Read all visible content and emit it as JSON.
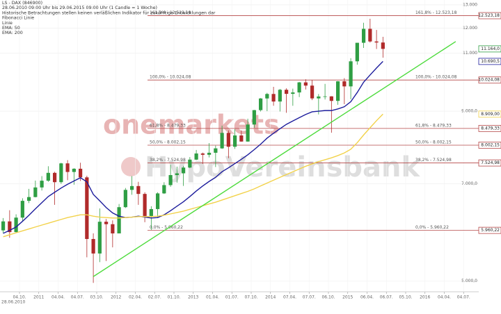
{
  "chart_data": {
    "type": "candlestick",
    "title": "LS - DAX (846900)",
    "subtitle": "28.06.2010 09:00 Uhr bis 29.06.2015 09:00 Uhr (1 Candle = 1 Woche)",
    "disclaimer": "Historische Betrachtungen stellen keinen verläßlichen Indikator für zukünftige Entwicklungen dar",
    "watermark": [
      "onemarkets",
      "HypoVereinsbank"
    ],
    "log_scale": true,
    "grid": true,
    "ylim": [
      4820,
      13220
    ],
    "yticks": [
      {
        "value": 5000,
        "label": "5.000,0"
      },
      {
        "value": 7000,
        "label": "7.000,0"
      },
      {
        "value": 9000,
        "label": "9.000,0"
      },
      {
        "value": 11000,
        "label": "11.000"
      },
      {
        "value": 12000,
        "label": "12.000"
      },
      {
        "value": 13000,
        "label": "13.000"
      }
    ],
    "x_start_label": "28.06.2010",
    "xticks": [
      "04.10.",
      "2011",
      "04.04.",
      "04.07.",
      "03.10.",
      "2012",
      "02.04.",
      "02.07.",
      "01.10.",
      "2013",
      "01.04.",
      "01.07.",
      "07.10.",
      "2014",
      "07.04.",
      "07.07.",
      "06.10.",
      "2015",
      "06.04.",
      "06.07.",
      "05.10.",
      "2016",
      "04.04.",
      "04.07."
    ],
    "up_color": "#2f9e44",
    "down_color": "#b02a2a",
    "open": [
      5960,
      6148,
      5925,
      6229,
      6601,
      6688,
      6914,
      7077,
      7272,
      7041,
      7514,
      7294,
      7376,
      7159,
      5785,
      5502,
      6141,
      6089,
      5898,
      6458,
      6856,
      6947,
      6761,
      6264,
      6416,
      6773,
      6970,
      7216,
      7260,
      7406,
      7612,
      7776,
      7741,
      7795,
      7914,
      8349,
      7959,
      8276,
      8103,
      8594,
      9033,
      9405,
      9552,
      9306,
      9692,
      9556,
      9603,
      9943,
      9833,
      9407,
      9470,
      9474,
      9326,
      9980,
      9806,
      10694,
      11402,
      11966,
      11454,
      11413
    ],
    "high": [
      6220,
      6390,
      6300,
      6660,
      6880,
      7080,
      7190,
      7440,
      7300,
      7530,
      7600,
      7390,
      7530,
      7200,
      5900,
      6430,
      6200,
      6170,
      6530,
      6900,
      7190,
      7050,
      6800,
      6480,
      6800,
      7040,
      7480,
      7430,
      7450,
      7680,
      7870,
      7800,
      8060,
      7990,
      8560,
      8420,
      8460,
      8420,
      8770,
      9040,
      9420,
      9590,
      9790,
      9720,
      9740,
      9730,
      9960,
      10050,
      10030,
      9550,
      9890,
      9480,
      9990,
      10090,
      10810,
      11400,
      12220,
      12390,
      11920,
      11640
    ],
    "low": [
      5900,
      5810,
      5920,
      6150,
      6550,
      6680,
      6840,
      7050,
      6510,
      7000,
      7090,
      6980,
      7070,
      5430,
      4970,
      5340,
      5360,
      5620,
      5900,
      6440,
      6740,
      6510,
      6130,
      5970,
      6240,
      6760,
      6930,
      7030,
      6950,
      7390,
      7600,
      7500,
      7670,
      7420,
      7900,
      7650,
      7900,
      8100,
      8100,
      8500,
      8990,
      9000,
      9170,
      8990,
      8950,
      9170,
      9450,
      9700,
      9350,
      8900,
      9370,
      8355,
      9200,
      9220,
      9380,
      10570,
      11200,
      11410,
      11160,
      10830
    ],
    "close": [
      6148,
      5925,
      6229,
      6601,
      6688,
      6914,
      7077,
      7272,
      7041,
      7514,
      7294,
      7376,
      7159,
      5785,
      5502,
      6141,
      6089,
      5898,
      6458,
      6856,
      6947,
      6761,
      6264,
      6416,
      6773,
      6970,
      7216,
      7260,
      7406,
      7612,
      7776,
      7741,
      7795,
      7914,
      8349,
      7959,
      8276,
      8103,
      8594,
      9033,
      9405,
      9552,
      9306,
      9692,
      9556,
      9603,
      9943,
      9833,
      9407,
      9470,
      9474,
      9326,
      9980,
      9806,
      10694,
      11402,
      11966,
      11454,
      11413,
      11164
    ],
    "series": [
      {
        "name": "EMA: 50",
        "color": "#1c1c9c",
        "values": [
          5900,
          5960,
          6030,
          6150,
          6280,
          6420,
          6560,
          6700,
          6800,
          6900,
          6990,
          7070,
          7150,
          7050,
          6750,
          6600,
          6450,
          6330,
          6260,
          6230,
          6240,
          6260,
          6240,
          6220,
          6230,
          6290,
          6380,
          6480,
          6580,
          6700,
          6830,
          6950,
          7060,
          7160,
          7300,
          7400,
          7510,
          7620,
          7740,
          7880,
          8030,
          8200,
          8340,
          8470,
          8600,
          8700,
          8800,
          8900,
          8980,
          9000,
          9020,
          9020,
          9070,
          9140,
          9300,
          9600,
          9950,
          10200,
          10450,
          10690
        ]
      },
      {
        "name": "EMA: 200",
        "color": "#f2d24a",
        "values": [
          5830,
          5870,
          5910,
          5950,
          5990,
          6030,
          6070,
          6110,
          6150,
          6190,
          6230,
          6260,
          6290,
          6290,
          6260,
          6240,
          6230,
          6220,
          6220,
          6230,
          6240,
          6250,
          6250,
          6250,
          6260,
          6280,
          6310,
          6340,
          6370,
          6410,
          6450,
          6490,
          6530,
          6570,
          6620,
          6670,
          6720,
          6770,
          6820,
          6880,
          6950,
          7020,
          7090,
          7160,
          7230,
          7300,
          7370,
          7440,
          7500,
          7560,
          7610,
          7660,
          7720,
          7790,
          7890,
          8070,
          8290,
          8500,
          8710,
          8909
        ]
      }
    ],
    "trend_line": {
      "name": "Linie",
      "color": "#4ddb3c",
      "values": [
        5080,
        11450
      ]
    },
    "fibonacci": {
      "name": "Fibonacci Linie",
      "color": "#b54646",
      "levels": [
        {
          "value": 12523.18,
          "label": "161,8% - 12.523,18"
        },
        {
          "value": 10024.08,
          "label": "100,0% - 10.024,08"
        },
        {
          "value": 8479.33,
          "label": "61,8% - 8.479,33"
        },
        {
          "value": 8002.15,
          "label": "50,0% - 8.002,15"
        },
        {
          "value": 7524.98,
          "label": "38,2% - 7.524,98"
        },
        {
          "value": 5960.22,
          "label": "0,0% - 5.960,22"
        }
      ]
    },
    "price_markers": [
      {
        "value": 12523.18,
        "label": "12.523,18",
        "color": "#b54646"
      },
      {
        "value": 11164,
        "label": "11.164,0",
        "color": "#2f9e44"
      },
      {
        "value": 10690.5,
        "label": "10.690,5",
        "color": "#1c1c9c"
      },
      {
        "value": 10024.08,
        "label": "10.024,08",
        "color": "#b54646"
      },
      {
        "value": 8909,
        "label": "8.909,00",
        "color": "#f2d24a"
      },
      {
        "value": 8479.33,
        "label": "8.479,33",
        "color": "#b54646"
      },
      {
        "value": 8002.15,
        "label": "8.002,15",
        "color": "#b54646"
      },
      {
        "value": 7524.98,
        "label": "7.524,98",
        "color": "#b54646"
      },
      {
        "value": 5960.22,
        "label": "5.960,22",
        "color": "#b54646"
      }
    ]
  }
}
